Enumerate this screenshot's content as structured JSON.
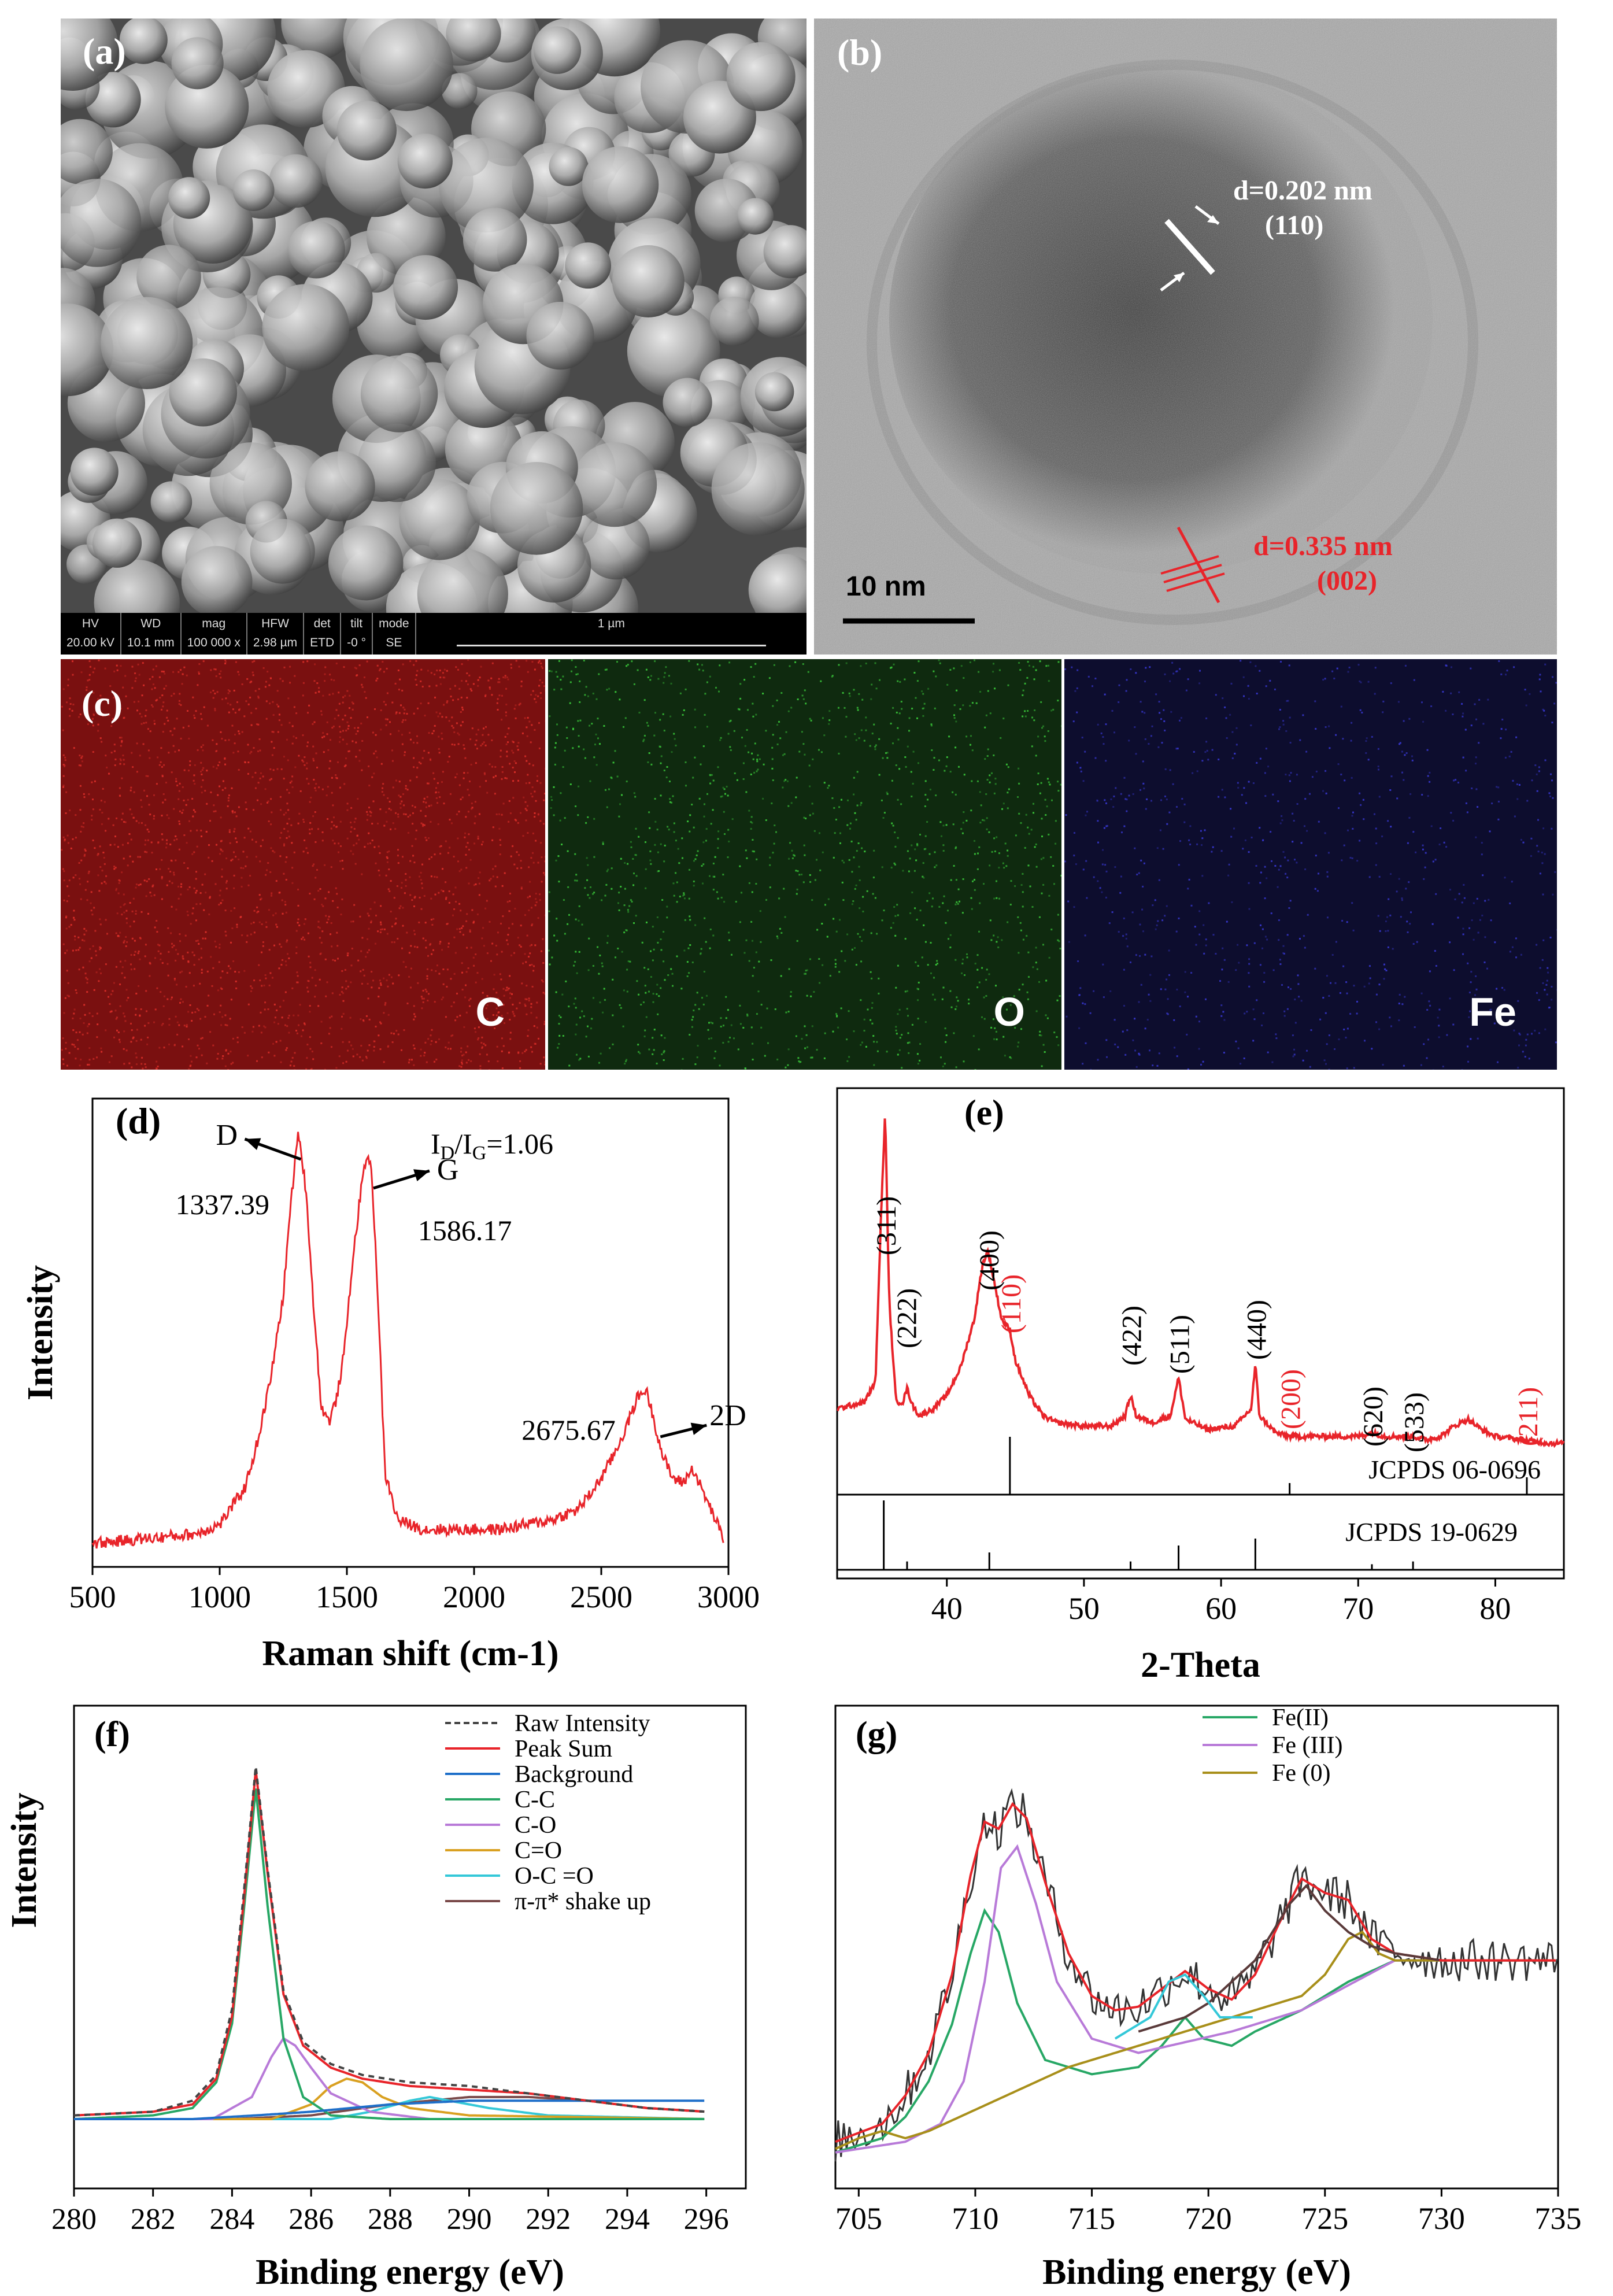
{
  "panels": {
    "a": {
      "label": "(a)",
      "sem_bar": [
        {
          "head": "HV",
          "value": "20.00 kV"
        },
        {
          "head": "WD",
          "value": "10.1 mm"
        },
        {
          "head": "mag",
          "value": "100 000 x"
        },
        {
          "head": "HFW",
          "value": "2.98 µm"
        },
        {
          "head": "det",
          "value": "ETD"
        },
        {
          "head": "tilt",
          "value": "-0 °"
        },
        {
          "head": "mode",
          "value": "SE"
        }
      ],
      "scale": "1 µm"
    },
    "b": {
      "label": "(b)",
      "spacing1": "d=0.202 nm",
      "plane1": "(110)",
      "spacing2": "d=0.335 nm",
      "plane2": "(002)",
      "scale": "10 nm",
      "accent": "#e8242a"
    },
    "c": {
      "label": "(c)",
      "elements": [
        {
          "symbol": "C",
          "color": "#7a1010"
        },
        {
          "symbol": "O",
          "color": "#0f2a0f"
        },
        {
          "symbol": "Fe",
          "color": "#0d0d2e"
        }
      ]
    }
  },
  "chart_data": [
    {
      "id": "d",
      "type": "line",
      "label": "(d)",
      "xlabel": "Raman shift (cm-1)",
      "ylabel": "Intensity",
      "xlim": [
        500,
        3000
      ],
      "xticks": [
        500,
        1000,
        1500,
        2000,
        2500,
        3000
      ],
      "ratio_text": {
        "prefix": "I",
        "sub1": "D",
        "mid": "/I",
        "sub2": "G",
        "suffix": "=1.06"
      },
      "color": "#e8242a",
      "peaks": [
        {
          "name": "D",
          "position": "1337.39",
          "x": 1337.39
        },
        {
          "name": "G",
          "position": "1586.17",
          "x": 1586.17
        },
        {
          "name": "2D",
          "position": "2675.67",
          "x": 2675.67
        }
      ],
      "series": [
        {
          "x": [
            500,
            700,
            900,
            1000,
            1100,
            1150,
            1200,
            1250,
            1280,
            1310,
            1340,
            1370,
            1400,
            1430,
            1460,
            1490,
            1520,
            1550,
            1570,
            1586,
            1600,
            1620,
            1650,
            1700,
            1800,
            1900,
            2000,
            2100,
            2200,
            2300,
            2400,
            2450,
            2500,
            2550,
            2600,
            2640,
            2675,
            2700,
            2740,
            2780,
            2820,
            2860,
            2900,
            2950,
            2980
          ],
          "y": [
            0.05,
            0.06,
            0.07,
            0.09,
            0.17,
            0.27,
            0.4,
            0.58,
            0.78,
            0.93,
            0.8,
            0.55,
            0.34,
            0.31,
            0.36,
            0.46,
            0.64,
            0.78,
            0.86,
            0.88,
            0.82,
            0.6,
            0.2,
            0.1,
            0.08,
            0.08,
            0.08,
            0.08,
            0.09,
            0.1,
            0.12,
            0.15,
            0.19,
            0.24,
            0.3,
            0.36,
            0.38,
            0.33,
            0.24,
            0.19,
            0.18,
            0.21,
            0.16,
            0.1,
            0.06
          ]
        }
      ]
    },
    {
      "id": "e",
      "type": "line",
      "label": "(e)",
      "xlabel": "2-Theta",
      "xlim": [
        32,
        85
      ],
      "xticks": [
        40,
        50,
        60,
        70,
        80
      ],
      "color": "#e8242a",
      "peak_labels": [
        {
          "text": "(311)",
          "x": 35.5,
          "highlight": false
        },
        {
          "text": "(222)",
          "x": 37.0,
          "highlight": false
        },
        {
          "text": "(400)",
          "x": 43.0,
          "highlight": false
        },
        {
          "text": "(110)",
          "x": 44.6,
          "highlight": true
        },
        {
          "text": "(422)",
          "x": 53.4,
          "highlight": false
        },
        {
          "text": "(511)",
          "x": 56.9,
          "highlight": false
        },
        {
          "text": "(440)",
          "x": 62.5,
          "highlight": false
        },
        {
          "text": "(200)",
          "x": 65.0,
          "highlight": true
        },
        {
          "text": "(620)",
          "x": 71.0,
          "highlight": false
        },
        {
          "text": "(533)",
          "x": 74.0,
          "highlight": false
        },
        {
          "text": "(211)",
          "x": 82.3,
          "highlight": true
        }
      ],
      "references": [
        {
          "name": "JCPDS 06-0696",
          "lines": [
            {
              "x": 44.6,
              "h": 1.0
            },
            {
              "x": 65.0,
              "h": 0.2
            },
            {
              "x": 82.3,
              "h": 0.3
            }
          ]
        },
        {
          "name": "JCPDS 19-0629",
          "lines": [
            {
              "x": 35.4,
              "h": 1.0
            },
            {
              "x": 37.1,
              "h": 0.12
            },
            {
              "x": 43.1,
              "h": 0.25
            },
            {
              "x": 53.4,
              "h": 0.12
            },
            {
              "x": 56.9,
              "h": 0.35
            },
            {
              "x": 62.5,
              "h": 0.45
            },
            {
              "x": 71.0,
              "h": 0.08
            },
            {
              "x": 74.0,
              "h": 0.12
            }
          ]
        }
      ],
      "series": [
        {
          "x": [
            32,
            33,
            34,
            34.8,
            35.2,
            35.5,
            35.8,
            36.3,
            36.8,
            37.1,
            37.5,
            38,
            39,
            40,
            41,
            42,
            42.6,
            43.0,
            43.4,
            44.0,
            44.6,
            45.0,
            46,
            47,
            48,
            50,
            52,
            53,
            53.4,
            53.8,
            55,
            56.3,
            56.9,
            57.4,
            59,
            61,
            62.2,
            62.5,
            62.8,
            64,
            65,
            66,
            68,
            70,
            71,
            72,
            74,
            75,
            76,
            77,
            78,
            79,
            80,
            82,
            84,
            85
          ],
          "y": [
            0.14,
            0.15,
            0.16,
            0.22,
            0.7,
            1.0,
            0.45,
            0.16,
            0.16,
            0.2,
            0.15,
            0.12,
            0.14,
            0.18,
            0.26,
            0.4,
            0.56,
            0.6,
            0.52,
            0.4,
            0.37,
            0.28,
            0.18,
            0.12,
            0.1,
            0.09,
            0.09,
            0.12,
            0.18,
            0.12,
            0.1,
            0.12,
            0.23,
            0.11,
            0.08,
            0.09,
            0.14,
            0.27,
            0.12,
            0.07,
            0.06,
            0.06,
            0.06,
            0.06,
            0.07,
            0.06,
            0.06,
            0.05,
            0.06,
            0.09,
            0.11,
            0.08,
            0.06,
            0.05,
            0.04,
            0.04
          ]
        }
      ]
    },
    {
      "id": "f",
      "type": "line",
      "label": "(f)",
      "xlabel": "Binding energy (eV)",
      "ylabel": "Intensity",
      "xlim": [
        280,
        297
      ],
      "xticks": [
        280,
        282,
        284,
        286,
        288,
        290,
        292,
        294,
        296
      ],
      "series": [
        {
          "name": "Raw Intensity",
          "color": "#444444",
          "dashed": true,
          "x": [
            280,
            282,
            283,
            283.6,
            284,
            284.3,
            284.6,
            284.9,
            285.3,
            285.8,
            286.5,
            287.3,
            288.5,
            290,
            291.5,
            293,
            294.5,
            296
          ],
          "y": [
            0.01,
            0.02,
            0.05,
            0.12,
            0.3,
            0.62,
            0.96,
            0.68,
            0.35,
            0.21,
            0.15,
            0.12,
            0.1,
            0.09,
            0.07,
            0.05,
            0.03,
            0.02
          ]
        },
        {
          "name": "Peak Sum",
          "color": "#e8242a",
          "x": [
            280,
            282,
            283,
            283.6,
            284,
            284.3,
            284.6,
            284.9,
            285.3,
            285.8,
            286.5,
            287.3,
            288.5,
            290,
            291.5,
            293,
            294.5,
            296
          ],
          "y": [
            0.01,
            0.02,
            0.04,
            0.11,
            0.28,
            0.6,
            0.95,
            0.67,
            0.34,
            0.2,
            0.14,
            0.11,
            0.09,
            0.08,
            0.07,
            0.05,
            0.03,
            0.02
          ]
        },
        {
          "name": "Background",
          "color": "#1e6fc9",
          "x": [
            280,
            283,
            284.6,
            286,
            288,
            290,
            292,
            294,
            296
          ],
          "y": [
            0.0,
            0.0,
            0.01,
            0.02,
            0.04,
            0.05,
            0.05,
            0.05,
            0.05
          ]
        },
        {
          "name": "C-C",
          "color": "#27a765",
          "x": [
            280,
            282,
            283,
            283.6,
            284,
            284.3,
            284.6,
            284.9,
            285.3,
            285.8,
            286.5,
            288,
            296
          ],
          "y": [
            0.0,
            0.01,
            0.03,
            0.1,
            0.26,
            0.57,
            0.9,
            0.58,
            0.22,
            0.06,
            0.01,
            0.0,
            0.0
          ]
        },
        {
          "name": "C-O",
          "color": "#b87ad8",
          "x": [
            280,
            283.5,
            284.5,
            285,
            285.3,
            285.6,
            286,
            286.5,
            287.5,
            289,
            296
          ],
          "y": [
            0.0,
            0.0,
            0.06,
            0.17,
            0.22,
            0.2,
            0.14,
            0.07,
            0.02,
            0.0,
            0.0
          ]
        },
        {
          "name": "C=O",
          "color": "#d9a020",
          "x": [
            280,
            285,
            286,
            286.5,
            286.9,
            287.3,
            287.8,
            288.5,
            290,
            296
          ],
          "y": [
            0.0,
            0.0,
            0.04,
            0.09,
            0.11,
            0.1,
            0.06,
            0.03,
            0.01,
            0.0
          ]
        },
        {
          "name": "O-C =O",
          "color": "#34c8d8",
          "x": [
            280,
            286.5,
            287.5,
            288.5,
            289,
            289.5,
            290.5,
            292,
            296
          ],
          "y": [
            0.0,
            0.0,
            0.02,
            0.05,
            0.06,
            0.05,
            0.03,
            0.01,
            0.0
          ]
        },
        {
          "name": "π-π* shake up",
          "color": "#7a4a4a",
          "x": [
            280,
            284,
            286,
            288,
            290,
            291.5,
            293,
            294.5,
            296
          ],
          "y": [
            0.0,
            0.0,
            0.01,
            0.04,
            0.06,
            0.06,
            0.05,
            0.03,
            0.02
          ]
        }
      ]
    },
    {
      "id": "g",
      "type": "line",
      "label": "(g)",
      "xlabel": "Binding energy (eV)",
      "xlim": [
        704,
        735
      ],
      "xticks": [
        705,
        710,
        715,
        720,
        725,
        730,
        735
      ],
      "series": [
        {
          "name": "Fe(II)",
          "color": "#27a765",
          "x": [
            704,
            706,
            707,
            708,
            709,
            709.8,
            710.4,
            711,
            711.8,
            713,
            715,
            717,
            718,
            719,
            719.8,
            721,
            722,
            724,
            726,
            728,
            730,
            735
          ],
          "y": [
            0.02,
            0.06,
            0.12,
            0.22,
            0.38,
            0.58,
            0.7,
            0.64,
            0.44,
            0.28,
            0.24,
            0.26,
            0.32,
            0.4,
            0.34,
            0.32,
            0.36,
            0.42,
            0.5,
            0.56,
            0.56,
            0.56
          ]
        },
        {
          "name": "Fe (III)",
          "color": "#b87ad8",
          "x": [
            704,
            707,
            708.5,
            709.5,
            710.4,
            711.1,
            711.8,
            712.6,
            713.5,
            715,
            717,
            719,
            721,
            724,
            726,
            728,
            730,
            735
          ],
          "y": [
            0.02,
            0.05,
            0.1,
            0.22,
            0.5,
            0.82,
            0.88,
            0.72,
            0.5,
            0.34,
            0.3,
            0.33,
            0.36,
            0.42,
            0.49,
            0.56,
            0.56,
            0.56
          ]
        },
        {
          "name": "Fe (0)",
          "color": "#a88f1a",
          "x": [
            704,
            705,
            706,
            706.5,
            707,
            708,
            710,
            712,
            714,
            716,
            718,
            720,
            722,
            724,
            725,
            726,
            726.6,
            727.3,
            728,
            730,
            735
          ],
          "y": [
            0.03,
            0.06,
            0.08,
            0.07,
            0.06,
            0.08,
            0.14,
            0.2,
            0.26,
            0.3,
            0.34,
            0.38,
            0.42,
            0.46,
            0.52,
            0.62,
            0.64,
            0.58,
            0.56,
            0.56,
            0.56
          ]
        },
        {
          "color": "#e8242a",
          "x": [
            704,
            706,
            707,
            708,
            709,
            709.8,
            710.4,
            711,
            711.6,
            712.2,
            713,
            714,
            715,
            716,
            717,
            718,
            719,
            720,
            721,
            722,
            723,
            724,
            725,
            726,
            727,
            728,
            730,
            732,
            735
          ],
          "y": [
            0.05,
            0.1,
            0.18,
            0.3,
            0.52,
            0.8,
            0.95,
            0.93,
            1.0,
            0.96,
            0.78,
            0.58,
            0.46,
            0.42,
            0.43,
            0.48,
            0.53,
            0.48,
            0.45,
            0.52,
            0.66,
            0.79,
            0.75,
            0.73,
            0.62,
            0.58,
            0.56,
            0.56,
            0.56
          ]
        },
        {
          "color": "#5a3a3a",
          "x": [
            717,
            719,
            720,
            722,
            723.5,
            724.2,
            725,
            726,
            727,
            728,
            729,
            730
          ],
          "y": [
            0.36,
            0.4,
            0.44,
            0.56,
            0.72,
            0.77,
            0.7,
            0.64,
            0.6,
            0.58,
            0.57,
            0.56
          ]
        },
        {
          "color": "#34c8d8",
          "x": [
            716,
            717.5,
            718.3,
            719,
            719.8,
            720.5,
            722
          ],
          "y": [
            0.34,
            0.4,
            0.5,
            0.52,
            0.46,
            0.4,
            0.4
          ]
        }
      ],
      "raw": {
        "color": "#333333",
        "x_start": 704,
        "x_end": 735
      }
    }
  ]
}
